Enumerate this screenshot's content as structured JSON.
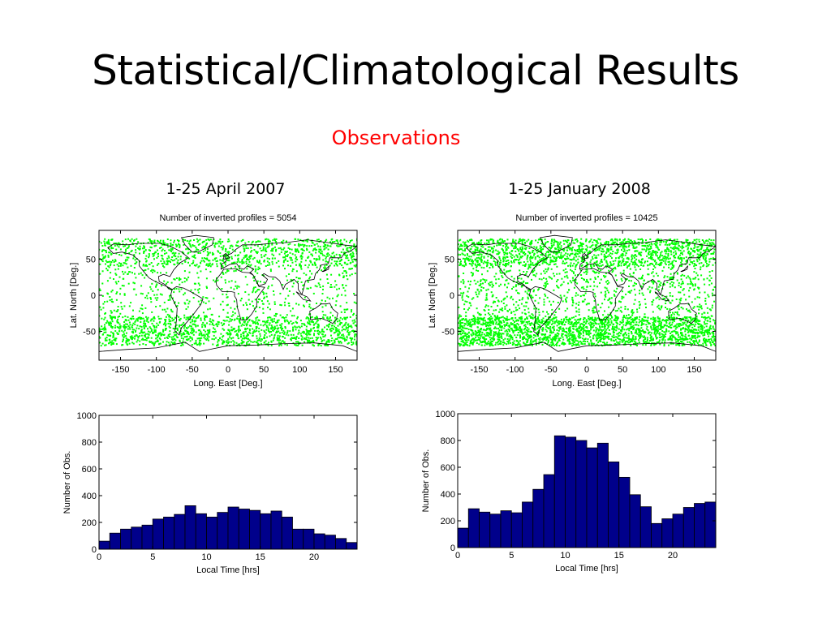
{
  "slide": {
    "title": "Statistical/Climatological Results",
    "subtitle": "Observations",
    "left_period": "1-25 April 2007",
    "right_period": "1-25 January 2008"
  },
  "colors": {
    "subtitle": "#ff0000",
    "map_points": "#00ff00",
    "coastline": "#000000",
    "bars": "#00008b"
  },
  "chart_data": [
    {
      "type": "scatter",
      "title": "Number of inverted profiles = 5054",
      "xlabel": "Long. East [Deg.]",
      "ylabel": "Lat. North [Deg.]",
      "xlim": [
        -180,
        180
      ],
      "ylim": [
        -90,
        90
      ],
      "xticks": [
        "-150",
        "-100",
        "-50",
        "0",
        "50",
        "100",
        "150"
      ],
      "yticks": [
        "50",
        "0",
        "-50"
      ],
      "n_points": 5054,
      "density_note": "dense between 30S and 70S and between 40N and 75N"
    },
    {
      "type": "scatter",
      "title": "Number of inverted profiles = 10425",
      "xlabel": "Long. East [Deg.]",
      "ylabel": "Lat. North [Deg.]",
      "xlim": [
        -180,
        180
      ],
      "ylim": [
        -90,
        90
      ],
      "xticks": [
        "-150",
        "-100",
        "-50",
        "0",
        "50",
        "100",
        "150"
      ],
      "yticks": [
        "50",
        "0",
        "-50"
      ],
      "n_points": 10425,
      "density_note": "dense between 30S and 70S and between 40N and 75N"
    },
    {
      "type": "bar",
      "xlabel": "Local Time [hrs]",
      "ylabel": "Number of Obs.",
      "xlim": [
        0,
        24
      ],
      "ylim": [
        0,
        1000
      ],
      "xticks": [
        "0",
        "5",
        "10",
        "15",
        "20"
      ],
      "yticks": [
        "0",
        "200",
        "400",
        "600",
        "800",
        "1000"
      ],
      "categories": [
        0.5,
        1.5,
        2.5,
        3.5,
        4.5,
        5.5,
        6.5,
        7.5,
        8.5,
        9.5,
        10.5,
        11.5,
        12.5,
        13.5,
        14.5,
        15.5,
        16.5,
        17.5,
        18.5,
        19.5,
        20.5,
        21.5,
        22.5,
        23.5
      ],
      "values": [
        60,
        120,
        150,
        165,
        180,
        225,
        240,
        260,
        325,
        265,
        240,
        275,
        315,
        300,
        290,
        265,
        285,
        240,
        150,
        150,
        115,
        105,
        80,
        50
      ]
    },
    {
      "type": "bar",
      "xlabel": "Local Time [hrs]",
      "ylabel": "Number of Obs.",
      "xlim": [
        0,
        24
      ],
      "ylim": [
        0,
        1000
      ],
      "xticks": [
        "0",
        "5",
        "10",
        "15",
        "20"
      ],
      "yticks": [
        "0",
        "200",
        "400",
        "600",
        "800",
        "1000"
      ],
      "categories": [
        0.5,
        1.5,
        2.5,
        3.5,
        4.5,
        5.5,
        6.5,
        7.5,
        8.5,
        9.5,
        10.5,
        11.5,
        12.5,
        13.5,
        14.5,
        15.5,
        16.5,
        17.5,
        18.5,
        19.5,
        20.5,
        21.5,
        22.5,
        23.5
      ],
      "values": [
        145,
        290,
        265,
        250,
        275,
        260,
        340,
        435,
        545,
        835,
        825,
        800,
        745,
        780,
        640,
        525,
        395,
        305,
        180,
        215,
        250,
        300,
        330,
        340
      ]
    }
  ]
}
